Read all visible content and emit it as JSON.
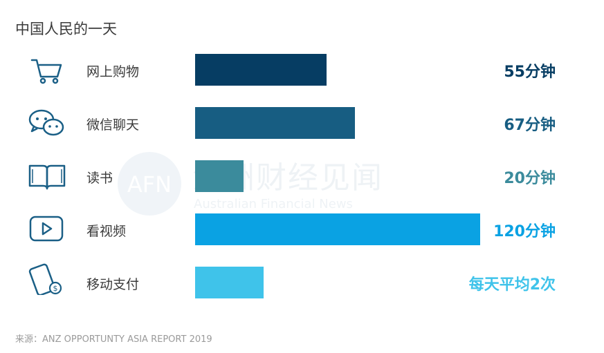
{
  "title": "中国人民的一天",
  "source": "来源：ANZ OPPORTUNTY ASIA REPORT 2019",
  "watermark": {
    "logo": "AFN",
    "cn": "澳洲财经见闻",
    "en": "Australian Financial News"
  },
  "chart_data": {
    "type": "bar",
    "orientation": "horizontal",
    "title": "中国人民的一天",
    "unit": "分钟",
    "xlim": [
      0,
      120
    ],
    "categories": [
      "网上购物",
      "微信聊天",
      "读书",
      "看视频",
      "移动支付"
    ],
    "values": [
      55,
      67,
      20,
      120,
      null
    ],
    "bar_fraction_of_max": [
      0.46,
      0.56,
      0.17,
      1.0,
      0.24
    ],
    "value_labels": [
      "55分钟",
      "67分钟",
      "20分钟",
      "120分钟",
      "每天平均2次"
    ],
    "icons": [
      "shopping-cart-icon",
      "wechat-chat-icon",
      "open-book-icon",
      "video-play-icon",
      "mobile-payment-icon"
    ],
    "bar_colors": [
      "#063d63",
      "#175d82",
      "#3b8b9c",
      "#0aa2e3",
      "#3fc3ea"
    ],
    "label_colors": [
      "#063d63",
      "#175d82",
      "#3b8b9c",
      "#0aa2e3",
      "#3fc3ea"
    ],
    "icon_color": "#1a5f86",
    "grid": false,
    "legend": "none"
  }
}
